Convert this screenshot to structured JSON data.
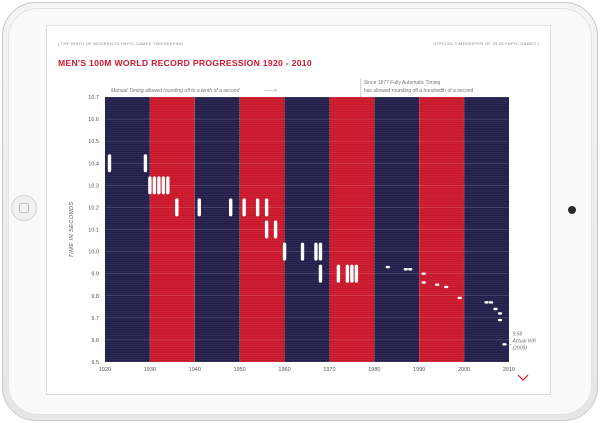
{
  "header": {
    "left": "[ THE BIRTH OF MODERN OLYMPIC GAMES TIMEKEEPING",
    "right": "OFFICIAL TIMEKEEPER OF 25 OLYMPIC GAMES ]"
  },
  "title": "MEN'S 100M WORLD RECORD PROGRESSION 1920 - 2010",
  "colors": {
    "navy": "#22204a",
    "red": "#c9182b",
    "marker": "#ffffff"
  },
  "chart_data": {
    "type": "scatter",
    "ylabel": "TIME IN SECONDS",
    "xlim": [
      1920,
      2010
    ],
    "ylim": [
      9.5,
      10.7
    ],
    "xticks": [
      "1920",
      "1930",
      "1940",
      "1950",
      "1960",
      "1970",
      "1980",
      "1990",
      "2000",
      "2010"
    ],
    "yticks": [
      "10.7",
      "10.6",
      "10.5",
      "10.4",
      "10.3",
      "10.2",
      "10.1",
      "10.0",
      "9.9",
      "9.8",
      "9.7",
      "9.6",
      "9.5"
    ],
    "bands": [
      {
        "from": 1920,
        "to": 1930,
        "color": "navy"
      },
      {
        "from": 1930,
        "to": 1940,
        "color": "red"
      },
      {
        "from": 1940,
        "to": 1950,
        "color": "navy"
      },
      {
        "from": 1950,
        "to": 1960,
        "color": "red"
      },
      {
        "from": 1960,
        "to": 1970,
        "color": "navy"
      },
      {
        "from": 1970,
        "to": 1980,
        "color": "red"
      },
      {
        "from": 1980,
        "to": 1990,
        "color": "navy"
      },
      {
        "from": 1990,
        "to": 2000,
        "color": "red"
      },
      {
        "from": 2000,
        "to": 2010,
        "color": "navy"
      }
    ],
    "manual_series": [
      {
        "x": 1921,
        "y": 10.4
      },
      {
        "x": 1929,
        "y": 10.4
      },
      {
        "x": 1930,
        "y": 10.3
      },
      {
        "x": 1931,
        "y": 10.3
      },
      {
        "x": 1932,
        "y": 10.3
      },
      {
        "x": 1933,
        "y": 10.3
      },
      {
        "x": 1934,
        "y": 10.3
      },
      {
        "x": 1936,
        "y": 10.2
      },
      {
        "x": 1941,
        "y": 10.2
      },
      {
        "x": 1948,
        "y": 10.2
      },
      {
        "x": 1951,
        "y": 10.2
      },
      {
        "x": 1954,
        "y": 10.2
      },
      {
        "x": 1956,
        "y": 10.2
      },
      {
        "x": 1956,
        "y": 10.1
      },
      {
        "x": 1958,
        "y": 10.1
      },
      {
        "x": 1960,
        "y": 10.0
      },
      {
        "x": 1964,
        "y": 10.0
      },
      {
        "x": 1967,
        "y": 10.0
      },
      {
        "x": 1968,
        "y": 10.0
      },
      {
        "x": 1968,
        "y": 9.9
      },
      {
        "x": 1972,
        "y": 9.9
      },
      {
        "x": 1974,
        "y": 9.9
      },
      {
        "x": 1975,
        "y": 9.9
      },
      {
        "x": 1976,
        "y": 9.9
      }
    ],
    "automatic_series": [
      {
        "x": 1983,
        "y": 9.93
      },
      {
        "x": 1987,
        "y": 9.92
      },
      {
        "x": 1988,
        "y": 9.92
      },
      {
        "x": 1991,
        "y": 9.9
      },
      {
        "x": 1991,
        "y": 9.86
      },
      {
        "x": 1994,
        "y": 9.85
      },
      {
        "x": 1996,
        "y": 9.84
      },
      {
        "x": 1999,
        "y": 9.79
      },
      {
        "x": 2005,
        "y": 9.77
      },
      {
        "x": 2006,
        "y": 9.77
      },
      {
        "x": 2007,
        "y": 9.74
      },
      {
        "x": 2008,
        "y": 9.72
      },
      {
        "x": 2008,
        "y": 9.69
      },
      {
        "x": 2009,
        "y": 9.58
      }
    ],
    "annotations": {
      "manual": "Manual Timing allowed rounding off to a tenth of a second",
      "manual_arrow": "------>",
      "auto_line1": "Since 1977 Fully Automatic Timing",
      "auto_line2": "has allowed rounding off a hundredth of a second",
      "wr_line1": "9.58",
      "wr_line2": "Actual WR",
      "wr_line3": "(2009)"
    }
  },
  "nav": {
    "scroll_down_icon": "chevron-down-icon"
  }
}
